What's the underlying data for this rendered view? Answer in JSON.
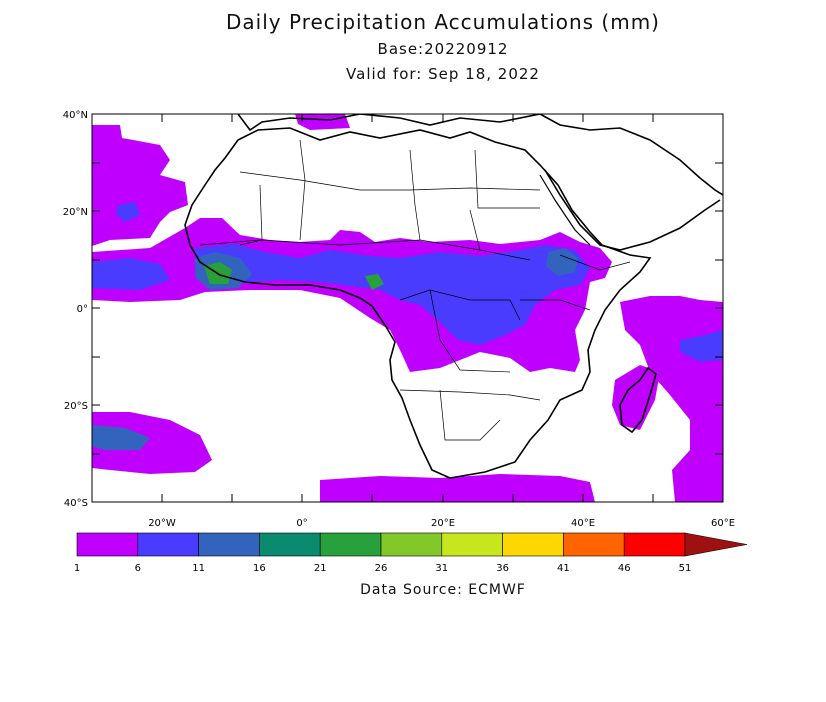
{
  "title": "Daily Precipitation Accumulations (mm)",
  "base": "Base:20220912",
  "valid": "Valid for: Sep 18, 2022",
  "source": "Data Source: ECMWF",
  "lat_labels": [
    "40°N",
    "20°N",
    "0°",
    "20°S",
    "40°S"
  ],
  "lon_labels": [
    "20°W",
    "0°",
    "20°E",
    "40°E",
    "60°E"
  ],
  "scale": {
    "colors": [
      "#c000ff",
      "#4a3cff",
      "#3264be",
      "#0a8a6e",
      "#28a03c",
      "#82c828",
      "#c8e61e",
      "#ffd700",
      "#ff6400",
      "#ff0000",
      "#a01010"
    ],
    "labels": [
      "1",
      "6",
      "11",
      "16",
      "21",
      "26",
      "31",
      "36",
      "41",
      "46",
      "51"
    ]
  },
  "colors": {
    "land_border": "#000000",
    "precip_light": "#c000ff",
    "precip_medium": "#4a3cff",
    "precip_heavy": "#3264be",
    "precip_green": "#28a03c"
  }
}
